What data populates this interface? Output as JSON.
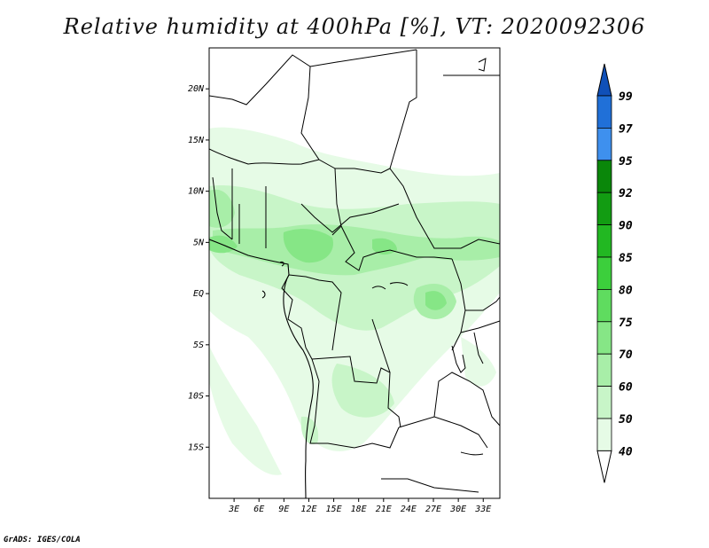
{
  "title": "Relative humidity at 400hPa [%], VT: 2020092306",
  "credit": "GrADS: IGES/COLA",
  "map": {
    "lon_range": [
      0,
      35
    ],
    "lat_range": [
      -20,
      24
    ],
    "lat_ticks": [
      {
        "value": 20,
        "label": "20N"
      },
      {
        "value": 15,
        "label": "15N"
      },
      {
        "value": 10,
        "label": "10N"
      },
      {
        "value": 5,
        "label": "5N"
      },
      {
        "value": 0,
        "label": "EQ"
      },
      {
        "value": -5,
        "label": "5S"
      },
      {
        "value": -10,
        "label": "10S"
      },
      {
        "value": -15,
        "label": "15S"
      }
    ],
    "lon_ticks": [
      {
        "value": 3,
        "label": "3E"
      },
      {
        "value": 6,
        "label": "6E"
      },
      {
        "value": 9,
        "label": "9E"
      },
      {
        "value": 12,
        "label": "12E"
      },
      {
        "value": 15,
        "label": "15E"
      },
      {
        "value": 18,
        "label": "18E"
      },
      {
        "value": 21,
        "label": "21E"
      },
      {
        "value": 24,
        "label": "24E"
      },
      {
        "value": 27,
        "label": "27E"
      },
      {
        "value": 30,
        "label": "30E"
      },
      {
        "value": 33,
        "label": "33E"
      }
    ]
  },
  "colorbar": {
    "levels": [
      "40",
      "50",
      "60",
      "70",
      "75",
      "80",
      "85",
      "90",
      "92",
      "95",
      "97",
      "99"
    ],
    "colors": [
      "#ffffff",
      "#e6fbe6",
      "#c8f5c8",
      "#a8eea8",
      "#86e686",
      "#5fdc5f",
      "#3ccf3c",
      "#22b822",
      "#129c12",
      "#0a870a",
      "#3e90ee",
      "#2070d8",
      "#1050b8"
    ]
  },
  "humidity_regions": [
    {
      "name": "sahel-band",
      "level": 1
    },
    {
      "name": "central-core",
      "level": 3
    },
    {
      "name": "east-lakes",
      "level": 3
    },
    {
      "name": "southwest-angola",
      "level": 1
    }
  ]
}
